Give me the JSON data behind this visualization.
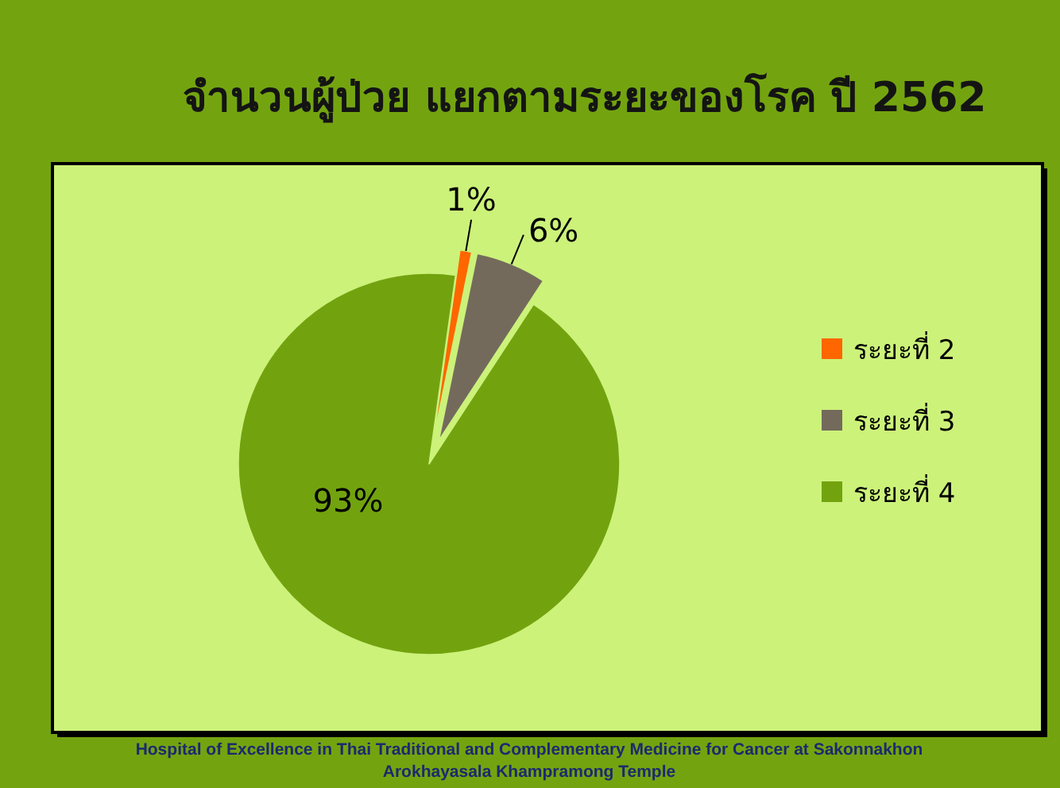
{
  "chart_data": {
    "type": "pie",
    "title": "จำนวนผู้ป่วย แยกตามระยะของโรค ปี 2562",
    "categories": [
      "ระยะที่ 2",
      "ระยะที่ 3",
      "ระยะที่ 4"
    ],
    "values": [
      1,
      6,
      93
    ],
    "colors": [
      "#ff6600",
      "#746a5c",
      "#72a30f"
    ],
    "value_labels": [
      "1%",
      "6%",
      "93%"
    ],
    "legend": "right",
    "annotations": [
      "Hospital of Excellence in Thai Traditional and Complementary Medicine for Cancer at Sakonnakhon",
      "Arokhayasala Khampramong Temple"
    ]
  }
}
